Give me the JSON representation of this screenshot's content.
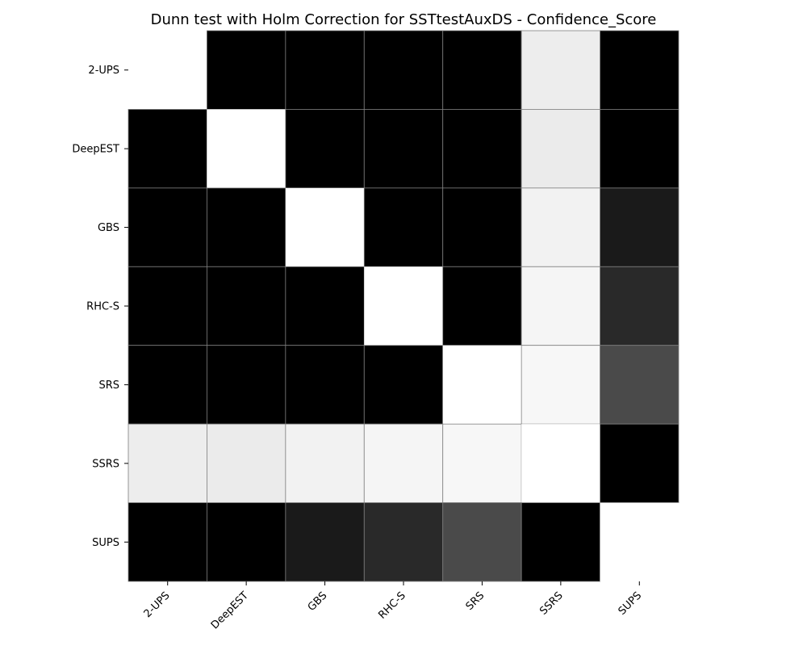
{
  "chart_data": {
    "type": "heatmap",
    "title": "Dunn test with Holm Correction for SSTtestAuxDS - Confidence_Score",
    "xlabel": "",
    "ylabel": "",
    "categories": [
      "2-UPS",
      "DeepEST",
      "GBS",
      "RHC-S",
      "SRS",
      "SSRS",
      "SUPS"
    ],
    "colormap": "gray (darker = smaller value)",
    "values": [
      [
        1.0,
        0.0,
        0.0,
        0.0,
        0.0,
        0.93,
        0.0
      ],
      [
        0.0,
        1.0,
        0.0,
        0.0,
        0.0,
        0.92,
        0.0
      ],
      [
        0.0,
        0.0,
        1.0,
        0.0,
        0.0,
        0.95,
        0.1
      ],
      [
        0.0,
        0.0,
        0.0,
        1.0,
        0.0,
        0.96,
        0.16
      ],
      [
        0.0,
        0.0,
        0.0,
        0.0,
        1.0,
        0.97,
        0.29
      ],
      [
        0.93,
        0.92,
        0.95,
        0.96,
        0.97,
        1.0,
        0.0
      ],
      [
        0.0,
        0.0,
        0.1,
        0.16,
        0.29,
        0.0,
        1.0
      ]
    ],
    "diagonal_masked": true,
    "grid": false,
    "legend": "none"
  }
}
